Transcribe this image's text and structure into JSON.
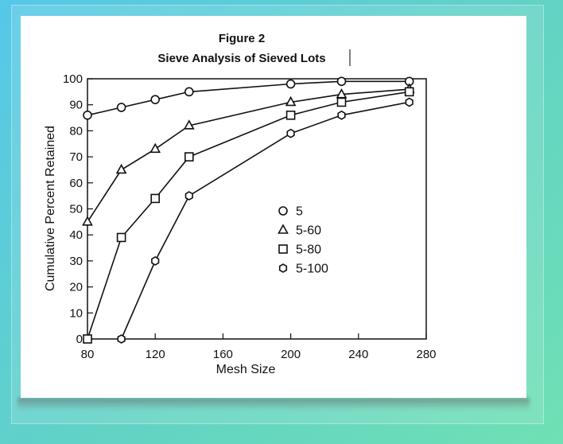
{
  "chart_data": {
    "type": "line",
    "title": "Figure 2",
    "subtitle": "Sieve Analysis of Sieved Lots",
    "xlabel": "Mesh Size",
    "ylabel": "Cumulative Percent Retained",
    "xlim": [
      80,
      280
    ],
    "ylim": [
      0,
      100
    ],
    "xticks": [
      80,
      120,
      160,
      200,
      240,
      280
    ],
    "yticks": [
      0,
      10,
      20,
      30,
      40,
      50,
      60,
      70,
      80,
      90,
      100
    ],
    "grid": false,
    "legend_position": "center-right",
    "series": [
      {
        "name": "5",
        "marker": "circle",
        "x": [
          80,
          100,
          120,
          140,
          200,
          230,
          270
        ],
        "y": [
          86,
          89,
          92,
          95,
          98,
          99,
          99
        ]
      },
      {
        "name": "5-60",
        "marker": "triangle",
        "x": [
          80,
          100,
          120,
          140,
          200,
          230,
          270
        ],
        "y": [
          45,
          65,
          73,
          82,
          91,
          94,
          96
        ]
      },
      {
        "name": "5-80",
        "marker": "square",
        "x": [
          80,
          100,
          120,
          140,
          200,
          230,
          270
        ],
        "y": [
          0,
          39,
          54,
          70,
          86,
          91,
          95
        ]
      },
      {
        "name": "5-100",
        "marker": "hexagon",
        "x": [
          100,
          120,
          140,
          200,
          230,
          270
        ],
        "y": [
          0,
          30,
          55,
          79,
          86,
          91
        ]
      }
    ]
  }
}
